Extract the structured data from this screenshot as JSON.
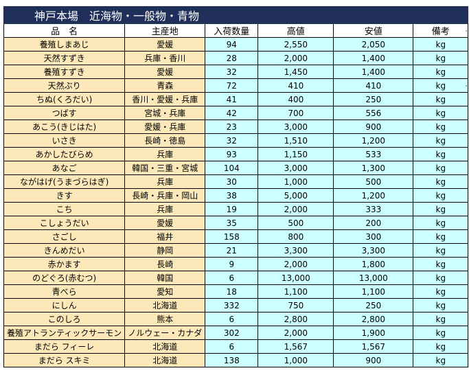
{
  "title": "神戸本場　近海物・一般物・青物",
  "columns": {
    "name": "品　名",
    "origin": "主産地",
    "quantity": "入荷数量",
    "high": "高値",
    "low": "安値",
    "unit": "備考"
  },
  "rows": [
    {
      "name": "養殖しまあじ",
      "origin": "愛媛",
      "quantity": "94",
      "high": "2,550",
      "low": "2,050",
      "unit": "kg"
    },
    {
      "name": "天然すずき",
      "origin": "兵庫・香川",
      "quantity": "28",
      "high": "2,000",
      "low": "1,400",
      "unit": "kg"
    },
    {
      "name": "養殖すずき",
      "origin": "愛媛",
      "quantity": "32",
      "high": "1,450",
      "low": "1,400",
      "unit": "kg"
    },
    {
      "name": "天然ぶり",
      "origin": "青森",
      "quantity": "72",
      "high": "410",
      "low": "410",
      "unit": "kg"
    },
    {
      "name": "ちぬ(くろだい)",
      "origin": "香川・愛媛・兵庫",
      "quantity": "41",
      "high": "400",
      "low": "250",
      "unit": "kg"
    },
    {
      "name": "つばす",
      "origin": "宮城・兵庫",
      "quantity": "42",
      "high": "700",
      "low": "556",
      "unit": "kg"
    },
    {
      "name": "あこう(きじはた)",
      "origin": "愛媛・兵庫",
      "quantity": "23",
      "high": "3,000",
      "low": "900",
      "unit": "kg"
    },
    {
      "name": "いさき",
      "origin": "長崎・徳島",
      "quantity": "32",
      "high": "1,510",
      "low": "1,200",
      "unit": "kg"
    },
    {
      "name": "あかしたびらめ",
      "origin": "兵庫",
      "quantity": "93",
      "high": "1,150",
      "low": "533",
      "unit": "kg"
    },
    {
      "name": "あなご",
      "origin": "韓国・三重・宮城",
      "quantity": "104",
      "high": "3,000",
      "low": "1,300",
      "unit": "kg"
    },
    {
      "name": "ながはげ(うまづらはぎ)",
      "origin": "兵庫",
      "quantity": "30",
      "high": "1,000",
      "low": "500",
      "unit": "kg"
    },
    {
      "name": "きす",
      "origin": "長崎・兵庫・岡山",
      "quantity": "38",
      "high": "5,000",
      "low": "1,200",
      "unit": "kg"
    },
    {
      "name": "こち",
      "origin": "兵庫",
      "quantity": "19",
      "high": "2,000",
      "low": "333",
      "unit": "kg"
    },
    {
      "name": "こしょうだい",
      "origin": "愛媛",
      "quantity": "35",
      "high": "500",
      "low": "200",
      "unit": "kg"
    },
    {
      "name": "さごし",
      "origin": "福井",
      "quantity": "158",
      "high": "800",
      "low": "300",
      "unit": "kg"
    },
    {
      "name": "きんめだい",
      "origin": "静岡",
      "quantity": "21",
      "high": "3,300",
      "low": "3,300",
      "unit": "kg"
    },
    {
      "name": "赤かます",
      "origin": "長崎",
      "quantity": "9",
      "high": "2,000",
      "low": "1,800",
      "unit": "kg"
    },
    {
      "name": "のどぐろ(赤むつ)",
      "origin": "韓国",
      "quantity": "6",
      "high": "13,000",
      "low": "13,000",
      "unit": "kg"
    },
    {
      "name": "青べら",
      "origin": "愛知",
      "quantity": "18",
      "high": "1,100",
      "low": "1,100",
      "unit": "kg"
    },
    {
      "name": "にしん",
      "origin": "北海道",
      "quantity": "332",
      "high": "750",
      "low": "250",
      "unit": "kg"
    },
    {
      "name": "このしろ",
      "origin": "熊本",
      "quantity": "6",
      "high": "2,800",
      "low": "2,800",
      "unit": "kg"
    },
    {
      "name": "養殖アトランティックサーモン",
      "origin": "ノルウェー・カナダ",
      "quantity": "302",
      "high": "2,000",
      "low": "1,900",
      "unit": "kg"
    },
    {
      "name": "まだら フィーレ",
      "origin": "北海道",
      "quantity": "6",
      "high": "1,567",
      "low": "1,567",
      "unit": "kg"
    },
    {
      "name": "まだら スキミ",
      "origin": "北海道",
      "quantity": "138",
      "high": "1,000",
      "low": "900",
      "unit": "kg"
    }
  ]
}
